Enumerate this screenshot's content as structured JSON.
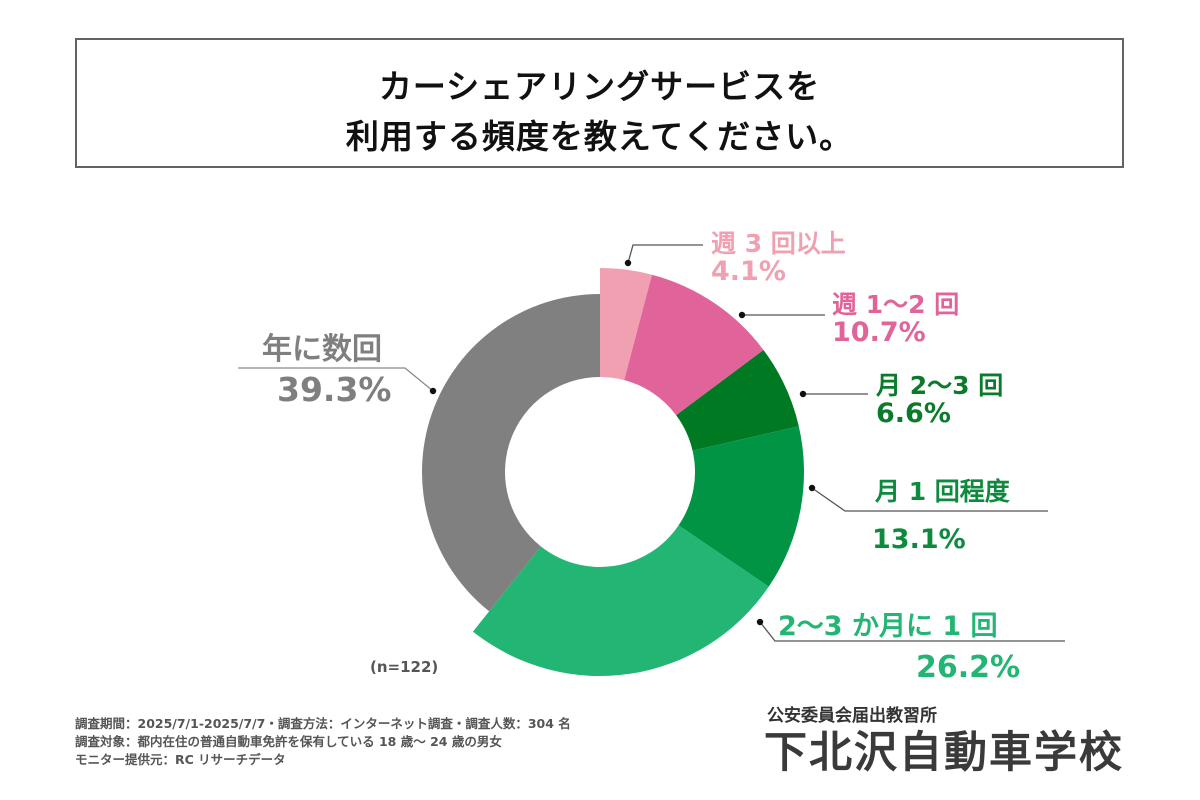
{
  "title": {
    "line1": "カーシェアリングサービスを",
    "line2": "利用する頻度を教えてください。"
  },
  "chart_data": {
    "type": "pie",
    "variant": "donut",
    "title": "カーシェアリングサービスを利用する頻度を教えてください。",
    "n_note": "(n=122)",
    "unit": "%",
    "slices": [
      {
        "label": "週 3 回以上",
        "value": 4.1,
        "value_label": "4.1%",
        "color": "#f0a0b0"
      },
      {
        "label": "週 1〜2 回",
        "value": 10.7,
        "value_label": "10.7%",
        "color": "#e0649a"
      },
      {
        "label": "月 2〜3 回",
        "value": 6.6,
        "value_label": "6.6%",
        "color": "#007a22"
      },
      {
        "label": "月 1 回程度",
        "value": 13.1,
        "value_label": "13.1%",
        "color": "#009444"
      },
      {
        "label": "2〜3 か月に 1 回",
        "value": 26.2,
        "value_label": "26.2%",
        "color": "#23b573"
      },
      {
        "label": "年に数回",
        "value": 39.3,
        "value_label": "39.3%",
        "color": "#808080"
      }
    ],
    "label_colors": [
      "#f0a0b0",
      "#e0649a",
      "#0b7a2a",
      "#0d8a3e",
      "#23b573",
      "#7f7f7f"
    ],
    "legend": "none (callout labels)"
  },
  "footer": {
    "line1": "調査期間：2025/7/1-2025/7/7・調査方法：インターネット調査・調査人数：304 名",
    "line2": "調査対象：都内在住の普通自動車免許を保有している 18 歳～ 24 歳の男女",
    "line3": "モニター提供元：RC リサーチデータ"
  },
  "branding": {
    "subtitle": "公安委員会届出教習所",
    "name": "下北沢自動車学校"
  }
}
